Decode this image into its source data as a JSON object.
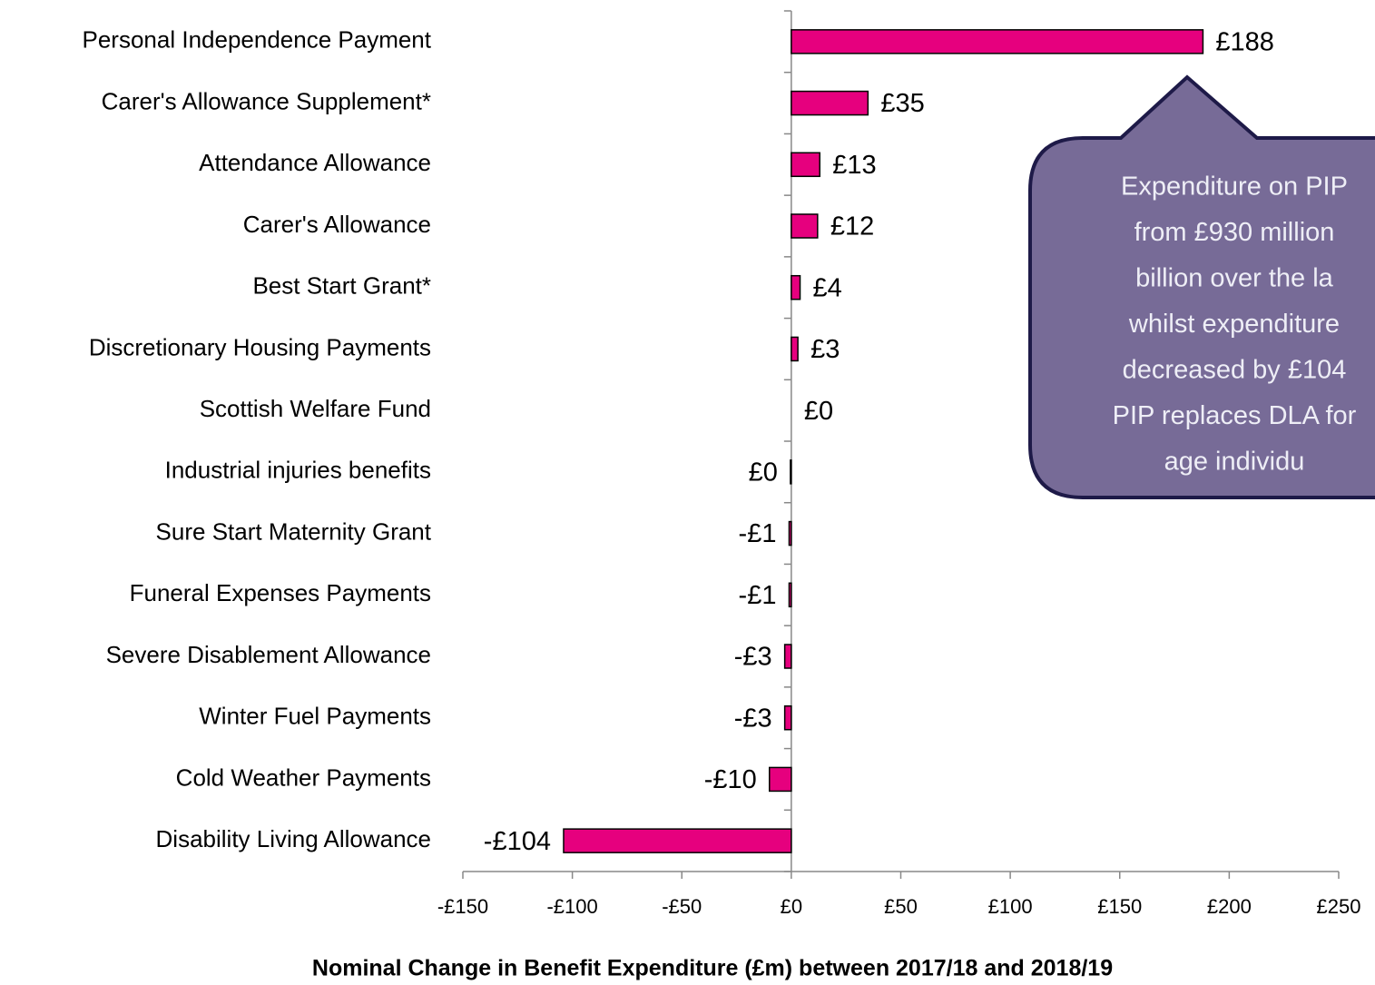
{
  "chart_data": {
    "type": "bar",
    "orientation": "horizontal",
    "x_label": "Nominal Change in Benefit Expenditure (£m) between 2017/18 and 2018/19",
    "categories": [
      "Personal Independence Payment",
      "Carer's Allowance Supplement*",
      "Attendance Allowance",
      "Carer's Allowance",
      "Best Start Grant*",
      "Discretionary Housing Payments",
      "Scottish Welfare Fund",
      "Industrial injuries benefits",
      "Sure Start Maternity Grant",
      "Funeral Expenses Payments",
      "Severe Disablement Allowance",
      "Winter Fuel Payments",
      "Cold Weather Payments",
      "Disability Living Allowance"
    ],
    "values": [
      188,
      35,
      13,
      12,
      4,
      3,
      0,
      -0.4,
      -1,
      -1,
      -3,
      -3,
      -10,
      -104
    ],
    "value_labels": [
      "£188",
      "£35",
      "£13",
      "£12",
      "£4",
      "£3",
      "£0",
      "£0",
      "-£1",
      "-£1",
      "-£3",
      "-£3",
      "-£10",
      "-£104"
    ],
    "color": "#e6007e",
    "xlim": [
      -150,
      250
    ],
    "xticks": [
      {
        "value": -150,
        "label": "-£150"
      },
      {
        "value": -100,
        "label": "-£100"
      },
      {
        "value": -50,
        "label": "-£50"
      },
      {
        "value": 0,
        "label": "£0"
      },
      {
        "value": 50,
        "label": "£50"
      },
      {
        "value": 100,
        "label": "£100"
      },
      {
        "value": 150,
        "label": "£150"
      },
      {
        "value": 200,
        "label": "£200"
      },
      {
        "value": 250,
        "label": "£250"
      }
    ],
    "annotation": {
      "lines": [
        "Expenditure on PIP",
        "from £930 million",
        "billion over the la",
        "whilst expenditure",
        "decreased by £104",
        "PIP replaces DLA for",
        "age individu"
      ]
    }
  }
}
